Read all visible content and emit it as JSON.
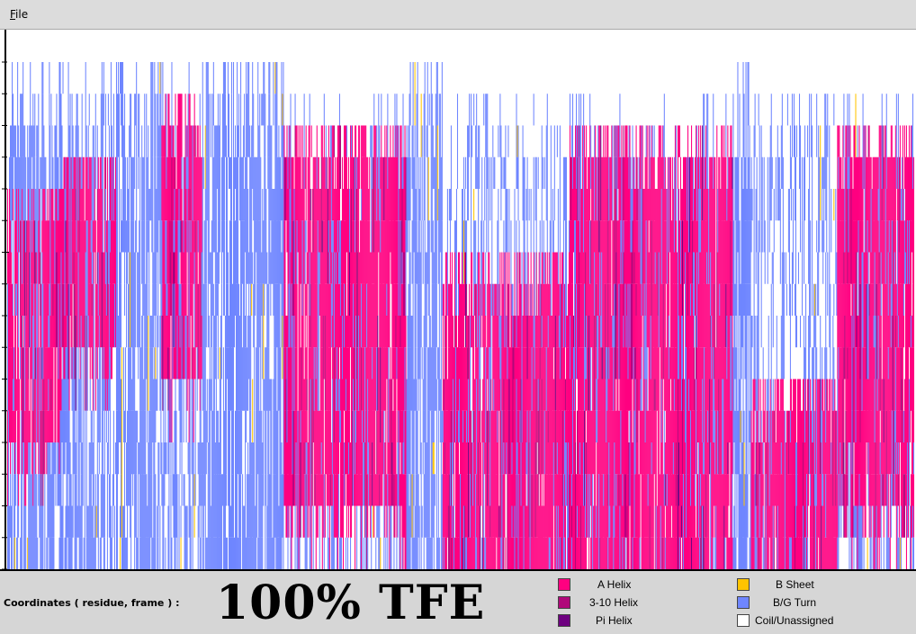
{
  "menu": {
    "file_label": "File"
  },
  "footer": {
    "coordinates_label": "Coordinates ( residue, frame ) :",
    "caption": "100% TFE"
  },
  "legend": [
    {
      "name": "A Helix",
      "color": "#ff0080"
    },
    {
      "name": "3-10 Helix",
      "color": "#b0087a"
    },
    {
      "name": "Pi Helix",
      "color": "#6e0080"
    },
    {
      "name": "B Sheet",
      "color": "#ffc400"
    },
    {
      "name": "B/G Turn",
      "color": "#6f86ff"
    },
    {
      "name": "Coil/Unassigned",
      "color": "#ffffff"
    }
  ],
  "chart_data": {
    "type": "heatmap",
    "description_of_axes": "",
    "rows": 16,
    "frames": 1000,
    "categories": [
      "A Helix",
      "3-10 Helix",
      "Pi Helix",
      "B Sheet",
      "B/G Turn",
      "Coil/Unassigned"
    ],
    "segments": [
      {
        "frames": [
          0,
          60
        ],
        "helix_rows": [
          4,
          12
        ],
        "turn_density": 0.7
      },
      {
        "frames": [
          60,
          120
        ],
        "helix_rows": [
          3,
          9
        ],
        "turn_density": 0.6
      },
      {
        "frames": [
          170,
          215
        ],
        "helix_rows": [
          1,
          10
        ],
        "turn_density": 0.55
      },
      {
        "frames": [
          305,
          440
        ],
        "helix_rows": [
          2,
          14
        ],
        "turn_density": 0.3
      },
      {
        "frames": [
          480,
          620
        ],
        "helix_rows": [
          6,
          16
        ],
        "turn_density": 0.35
      },
      {
        "frames": [
          560,
          800
        ],
        "helix_rows": [
          2,
          16
        ],
        "turn_density": 0.3
      },
      {
        "frames": [
          820,
          915
        ],
        "helix_rows": [
          10,
          16
        ],
        "turn_density": 0.35
      },
      {
        "frames": [
          905,
          1000
        ],
        "helix_rows": [
          2,
          14
        ],
        "turn_density": 0.4
      }
    ]
  }
}
